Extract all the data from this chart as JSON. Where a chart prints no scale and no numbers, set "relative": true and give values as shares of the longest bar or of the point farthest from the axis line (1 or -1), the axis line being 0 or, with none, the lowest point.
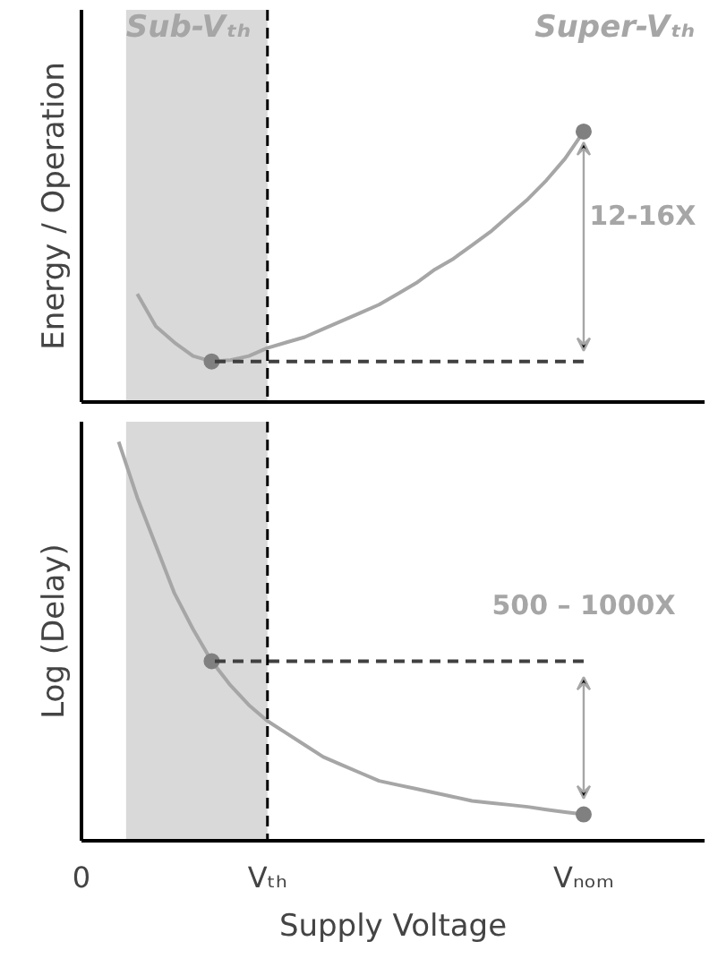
{
  "chart_data": [
    {
      "type": "line",
      "ylabel": "Energy / Operation",
      "relative": true,
      "tick_labels": false,
      "categories": [
        "0",
        null,
        null,
        null,
        null,
        null,
        null,
        null,
        null,
        null,
        "Vₜₕ",
        null,
        null,
        null,
        null,
        null,
        null,
        null,
        null,
        null,
        null,
        null,
        null,
        null,
        null,
        null,
        null,
        "Vₙₒₘ",
        null
      ],
      "ref_lines": [
        {
          "axis": "x",
          "value": "Vₜₕ",
          "color": "#000000",
          "line_style": "dashed"
        }
      ],
      "annotations": [
        "Sub-Vₜₕ",
        "Super-Vₜₕ",
        "12-16X"
      ],
      "series": [
        {
          "color": "#a6a6a6",
          "values": [
            null,
            null,
            null,
            0.4,
            0.28,
            0.22,
            0.17,
            0.15,
            0.155,
            0.17,
            0.2,
            0.22,
            0.24,
            0.27,
            0.3,
            0.33,
            0.36,
            0.4,
            0.44,
            0.49,
            0.53,
            0.58,
            0.63,
            0.69,
            0.75,
            0.82,
            0.9,
            1,
            null
          ]
        },
        {
          "type": "scatter",
          "marker": "circle",
          "color": "#808080",
          "values": [
            null,
            null,
            null,
            null,
            null,
            null,
            null,
            0.15,
            null,
            null,
            null,
            null,
            null,
            null,
            null,
            null,
            null,
            null,
            null,
            null,
            null,
            null,
            null,
            null,
            null,
            null,
            null,
            1,
            null
          ]
        },
        {
          "line_style": "dashed",
          "color": "#404040",
          "values": [
            null,
            null,
            null,
            null,
            null,
            null,
            null,
            0.15,
            0.15,
            0.15,
            0.15,
            0.15,
            0.15,
            0.15,
            0.15,
            0.15,
            0.15,
            0.15,
            0.15,
            0.15,
            0.15,
            0.15,
            0.15,
            0.15,
            0.15,
            0.15,
            0.15,
            0.15,
            null
          ]
        }
      ]
    },
    {
      "type": "line",
      "ylabel": "Log (Delay)",
      "xlabel": "Supply Voltage",
      "relative": true,
      "tick_labels": "x",
      "categories": [
        "0",
        null,
        null,
        null,
        null,
        null,
        null,
        null,
        null,
        null,
        "Vₜₕ",
        null,
        null,
        null,
        null,
        null,
        null,
        null,
        null,
        null,
        null,
        null,
        null,
        null,
        null,
        null,
        null,
        "Vₙₒₘ",
        null
      ],
      "ref_lines": [
        {
          "axis": "x",
          "value": "Vₜₕ",
          "color": "#000000",
          "line_style": "dashed"
        }
      ],
      "annotations": [
        "500 – 1000X"
      ],
      "series": [
        {
          "color": "#a6a6a6",
          "values": [
            null,
            null,
            1,
            0.86,
            0.74,
            0.62,
            0.53,
            0.45,
            0.39,
            0.34,
            0.3,
            0.27,
            0.24,
            0.21,
            0.19,
            0.17,
            0.15,
            0.14,
            0.13,
            0.12,
            0.11,
            0.1,
            0.095,
            0.09,
            0.085,
            0.078,
            0.072,
            0.066,
            null
          ]
        },
        {
          "type": "scatter",
          "marker": "circle",
          "color": "#808080",
          "values": [
            null,
            null,
            null,
            null,
            null,
            null,
            null,
            0.45,
            null,
            null,
            null,
            null,
            null,
            null,
            null,
            null,
            null,
            null,
            null,
            null,
            null,
            null,
            null,
            null,
            null,
            null,
            null,
            0.066,
            null
          ]
        },
        {
          "line_style": "dashed",
          "color": "#404040",
          "values": [
            null,
            null,
            null,
            null,
            null,
            null,
            null,
            0.45,
            0.45,
            0.45,
            0.45,
            0.45,
            0.45,
            0.45,
            0.45,
            0.45,
            0.45,
            0.45,
            0.45,
            0.45,
            0.45,
            0.45,
            0.45,
            0.45,
            0.45,
            0.45,
            0.45,
            0.45,
            null
          ]
        }
      ]
    }
  ]
}
